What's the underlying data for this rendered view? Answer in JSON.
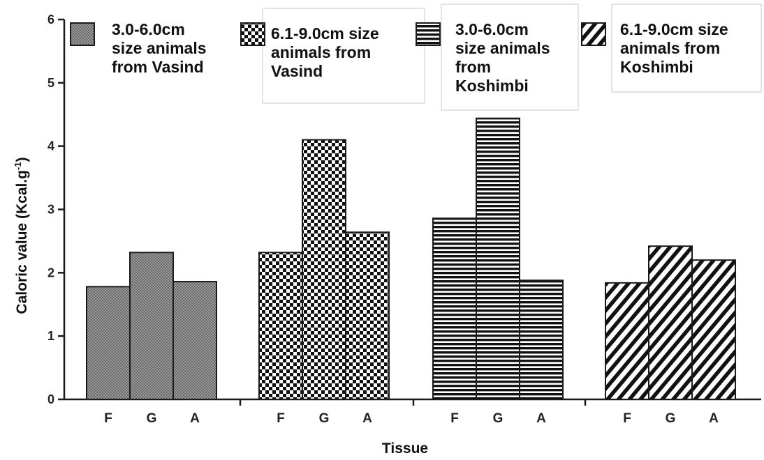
{
  "chart_data": {
    "type": "bar",
    "categories": [
      "F",
      "G",
      "A"
    ],
    "series": [
      {
        "name": "3.0-6.0cm size animals from Vasind",
        "pattern": "dense-check",
        "values": [
          1.78,
          2.32,
          1.86
        ]
      },
      {
        "name": "6.1-9.0cm size animals from Vasind",
        "pattern": "checkerboard",
        "values": [
          2.32,
          4.1,
          2.64
        ]
      },
      {
        "name": "3.0-6.0cm size animals from Koshimbi",
        "pattern": "horizontal-lines",
        "values": [
          2.86,
          4.44,
          1.88
        ]
      },
      {
        "name": "6.1-9.0cm size animals from Koshimbi",
        "pattern": "diagonal-lines",
        "values": [
          1.84,
          2.42,
          2.2
        ]
      }
    ],
    "xlabel": "Tissue",
    "ylabel": "Caloric value (Kcal.g",
    "ylabel_superscript": "-1",
    "ylabel_suffix": ")",
    "ylim": [
      0,
      6
    ],
    "yticks": [
      0,
      1,
      2,
      3,
      4,
      5,
      6
    ],
    "grid": false,
    "legend_position": "top"
  },
  "legend": [
    {
      "lines": [
        "3.0-6.0cm",
        "size animals",
        "from Vasind"
      ]
    },
    {
      "lines": [
        "6.1-9.0cm size",
        "animals from",
        "Vasind"
      ]
    },
    {
      "lines": [
        "3.0-6.0cm",
        "size animals",
        "from",
        "Koshimbi"
      ]
    },
    {
      "lines": [
        "6.1-9.0cm size",
        "animals from",
        "Koshimbi"
      ]
    }
  ],
  "colors": {
    "bar_stroke": "#1a1a1a",
    "axis": "#1a1a1a",
    "legend_box_border": "#e4e4e4"
  }
}
